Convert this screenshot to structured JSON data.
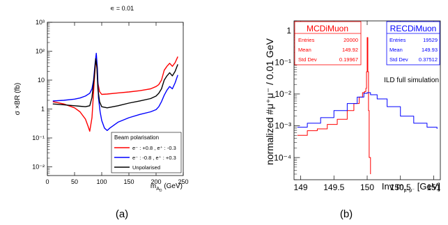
{
  "panels": [
    {
      "caption": "(a)",
      "title": "∊ = 0.01",
      "ylabel": "σ ×BR  (fb)",
      "xlabel_main": "m",
      "xlabel_sub": "A",
      "xlabel_subsub": "D",
      "xlabel_unit": " (GeV)",
      "legend_title": "Beam polarisation",
      "legend": [
        {
          "label": "e⁻ : +0.8 , e⁺ : -0.3",
          "color": "#ff0000"
        },
        {
          "label": "e⁻ : -0.8 , e⁺ : +0.3",
          "color": "#0000ff"
        },
        {
          "label": "Unpolarised",
          "color": "#000000"
        }
      ]
    },
    {
      "caption": "(b)",
      "ylabel": "normalized #μ⁺μ⁻ / 0.01 GeV",
      "xlabel": "Inv m",
      "xlabel_sub": "μ⁺μ⁻",
      "xlabel_unit": " [GeV]",
      "annotation": "ILD full simulation",
      "stats": [
        {
          "title": "MCDiMuon",
          "color": "#ff0000",
          "rows": [
            [
              "Entries",
              "20000"
            ],
            [
              "Mean",
              "149.92"
            ],
            [
              "Std Dev",
              "0.19967"
            ]
          ]
        },
        {
          "title": "RECDiMuon",
          "color": "#0000ff",
          "rows": [
            [
              "Entries",
              "19529"
            ],
            [
              "Mean",
              "149.93"
            ],
            [
              "Std Dev",
              "0.37512"
            ]
          ]
        }
      ]
    }
  ],
  "chart_data": [
    {
      "type": "line",
      "title": "∊ = 0.01",
      "xlabel": "m_AD (GeV)",
      "ylabel": "σ ×BR (fb)",
      "xlim": [
        0,
        250
      ],
      "ylim": [
        0.005,
        1000
      ],
      "yscale": "log",
      "xticks": [
        0,
        50,
        100,
        150,
        200,
        250
      ],
      "xtick_labels": [
        "0",
        "50",
        "100",
        "150",
        "200",
        "250"
      ],
      "yticks": [
        0.01,
        0.1,
        1,
        10,
        100,
        1000
      ],
      "ytick_labels": [
        "10⁻²",
        "10⁻¹",
        "1",
        "10",
        "10²",
        "10³"
      ],
      "legend_position": "lower-right",
      "series": [
        {
          "name": "e⁻ : +0.8 , e⁺ : -0.3",
          "color": "#ff0000",
          "x": [
            10,
            30,
            50,
            60,
            70,
            75,
            78,
            82,
            86,
            89,
            91,
            93,
            96,
            100,
            110,
            130,
            150,
            170,
            190,
            200,
            205,
            210,
            215,
            220,
            225,
            230,
            235,
            240
          ],
          "y": [
            1.8,
            1.5,
            1.1,
            0.8,
            0.45,
            0.25,
            0.17,
            0.5,
            8,
            50,
            28,
            8,
            4,
            3.2,
            3.3,
            3.6,
            3.9,
            4.3,
            5,
            6,
            7,
            10,
            22,
            30,
            38,
            30,
            40,
            65
          ]
        },
        {
          "name": "e⁻ : -0.8 , e⁺ : +0.3",
          "color": "#0000ff",
          "x": [
            10,
            30,
            50,
            60,
            70,
            78,
            82,
            85,
            88,
            90,
            92,
            94,
            97,
            100,
            105,
            110,
            115,
            130,
            150,
            170,
            190,
            200,
            205,
            210,
            215,
            220,
            225,
            230,
            235,
            240
          ],
          "y": [
            1.9,
            2.0,
            2.2,
            2.4,
            2.8,
            3.5,
            5,
            10,
            40,
            85,
            25,
            2.5,
            0.8,
            0.4,
            0.22,
            0.18,
            0.22,
            0.35,
            0.5,
            0.65,
            0.8,
            0.95,
            1.2,
            1.8,
            3,
            4.5,
            6,
            5,
            8,
            15
          ]
        },
        {
          "name": "Unpolarised",
          "color": "#000000",
          "x": [
            10,
            30,
            50,
            60,
            70,
            78,
            82,
            86,
            89,
            91,
            93,
            96,
            100,
            110,
            130,
            150,
            170,
            190,
            200,
            205,
            210,
            215,
            220,
            225,
            230,
            235,
            240
          ],
          "y": [
            1.5,
            1.4,
            1.3,
            1.25,
            1.2,
            1.3,
            2.5,
            12,
            55,
            30,
            5,
            1.8,
            1.2,
            1.1,
            1.3,
            1.6,
            1.9,
            2.3,
            2.8,
            3.5,
            5,
            10,
            14,
            18,
            14,
            20,
            35
          ]
        }
      ]
    },
    {
      "type": "histogram",
      "xlabel": "Inv m_μ⁺μ⁻ [GeV]",
      "ylabel": "normalized #μ⁺μ⁻ / 0.01 GeV",
      "xlim": [
        148.9,
        151.1
      ],
      "ylim": [
        2e-05,
        2
      ],
      "yscale": "log",
      "xticks": [
        149,
        149.5,
        150,
        150.5,
        151
      ],
      "xtick_labels": [
        "149",
        "149.5",
        "150",
        "150.5",
        "151"
      ],
      "yticks": [
        0.0001,
        0.001,
        0.01,
        0.1,
        1
      ],
      "ytick_labels": [
        "10⁻⁴",
        "10⁻³",
        "10⁻²",
        "10⁻¹",
        "1"
      ],
      "series": [
        {
          "name": "MCDiMuon",
          "color": "#ff0000",
          "x": [
            148.95,
            149.1,
            149.25,
            149.4,
            149.55,
            149.7,
            149.8,
            149.88,
            149.93,
            149.96,
            149.98,
            149.99,
            150.0,
            150.01,
            150.02,
            150.03,
            150.05
          ],
          "y": [
            0.0005,
            0.0007,
            0.0008,
            0.0011,
            0.0016,
            0.003,
            0.005,
            0.008,
            0.011,
            0.012,
            0.015,
            0.05,
            0.6,
            0.05,
            0.003,
            0.0001,
            3e-05
          ]
        },
        {
          "name": "RECDiMuon",
          "color": "#0000ff",
          "x": [
            148.95,
            149.1,
            149.3,
            149.5,
            149.7,
            149.85,
            149.95,
            150.0,
            150.05,
            150.15,
            150.3,
            150.5,
            150.7,
            150.9,
            151.05
          ],
          "y": [
            0.0009,
            0.0012,
            0.0018,
            0.003,
            0.005,
            0.008,
            0.0105,
            0.011,
            0.0095,
            0.007,
            0.004,
            0.002,
            0.0012,
            0.0009,
            0.0008
          ]
        }
      ]
    }
  ]
}
